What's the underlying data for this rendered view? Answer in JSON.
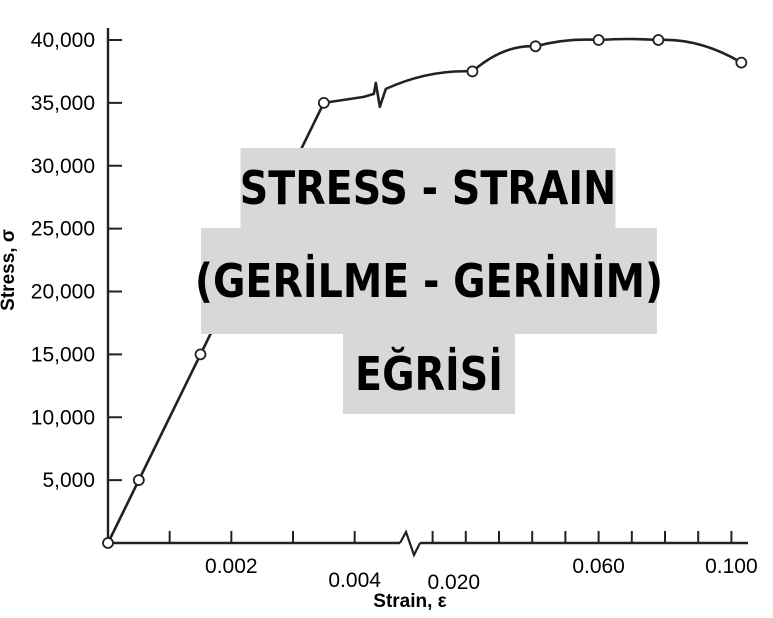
{
  "title_lines": [
    "STRESS - STRAIN",
    "(GERİLME - GERİNİM)",
    "EĞRİSİ"
  ],
  "chart_data": {
    "type": "line",
    "title": "STRESS - STRAIN (GERİLME - GERİNİM) EĞRİSİ",
    "xlabel": "Strain, ε",
    "ylabel": "Stress, σ",
    "ylim": [
      0,
      40000
    ],
    "yticks": [
      "5,000",
      "10,000",
      "15,000",
      "20,000",
      "25,000",
      "30,000",
      "35,000",
      "40,000"
    ],
    "x_segments": [
      {
        "xlim": [
          0,
          0.0048
        ],
        "ticks": [
          "0.002",
          "0.004"
        ]
      },
      {
        "xlim": [
          0.005,
          0.105
        ],
        "ticks": [
          "0.020",
          "0.060",
          "0.100"
        ]
      }
    ],
    "break_markers": [
      "x-axis break",
      "curve break"
    ],
    "grid": false,
    "line_color": "#222222",
    "points": [
      {
        "x": 0,
        "y": 0
      },
      {
        "x": 0.0005,
        "y": 5000
      },
      {
        "x": 0.0015,
        "y": 15000
      },
      {
        "x": 0.0025,
        "y": 25000
      },
      {
        "x": 0.0035,
        "y": 35000
      },
      {
        "x": 0.022,
        "y": 37500
      },
      {
        "x": 0.041,
        "y": 39500
      },
      {
        "x": 0.06,
        "y": 40000
      },
      {
        "x": 0.078,
        "y": 40000
      },
      {
        "x": 0.103,
        "y": 38200
      }
    ]
  }
}
